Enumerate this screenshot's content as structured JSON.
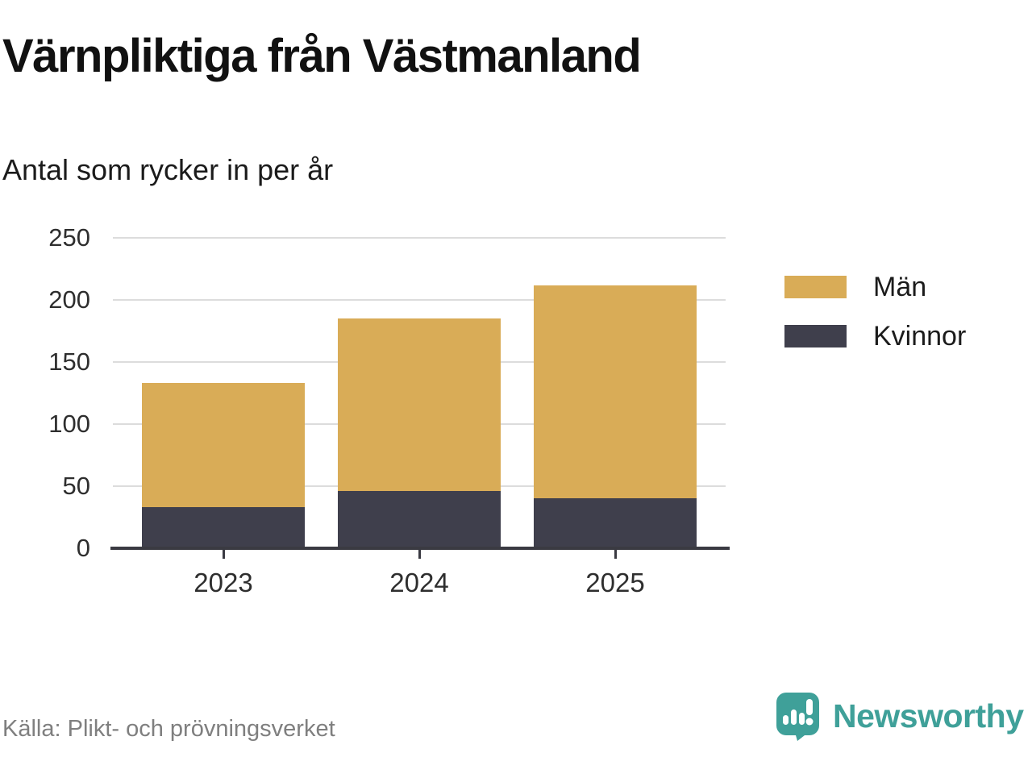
{
  "header": {
    "title": "Värnpliktiga från Västmanland",
    "subtitle": "Antal som rycker in per år"
  },
  "chart_data": {
    "type": "bar",
    "stacked": true,
    "title": "Värnpliktiga från Västmanland",
    "subtitle": "Antal som rycker in per år",
    "categories": [
      "2023",
      "2024",
      "2025"
    ],
    "series": [
      {
        "name": "Män",
        "color": "#D9AC57",
        "values": [
          100,
          139,
          172
        ]
      },
      {
        "name": "Kvinnor",
        "color": "#3F3F4C",
        "values": [
          33,
          46,
          40
        ]
      }
    ],
    "stack_order": [
      "Kvinnor",
      "Män"
    ],
    "totals": [
      133,
      185,
      212
    ],
    "xlabel": "",
    "ylabel": "",
    "ylim": [
      0,
      250
    ],
    "yticks": [
      0,
      50,
      100,
      150,
      200,
      250
    ],
    "grid": true,
    "legend_position": "right",
    "colors": {
      "grid": "#DCDCDC",
      "axis": "#3A3A42",
      "tick_text": "#2E2E2E"
    }
  },
  "footer": {
    "source": "Källa: Plikt- och prövningsverket",
    "brand": "Newsworthy",
    "logo_icon": "bar-chart-speech-bubble-icon",
    "brand_color": "#3FA099"
  }
}
